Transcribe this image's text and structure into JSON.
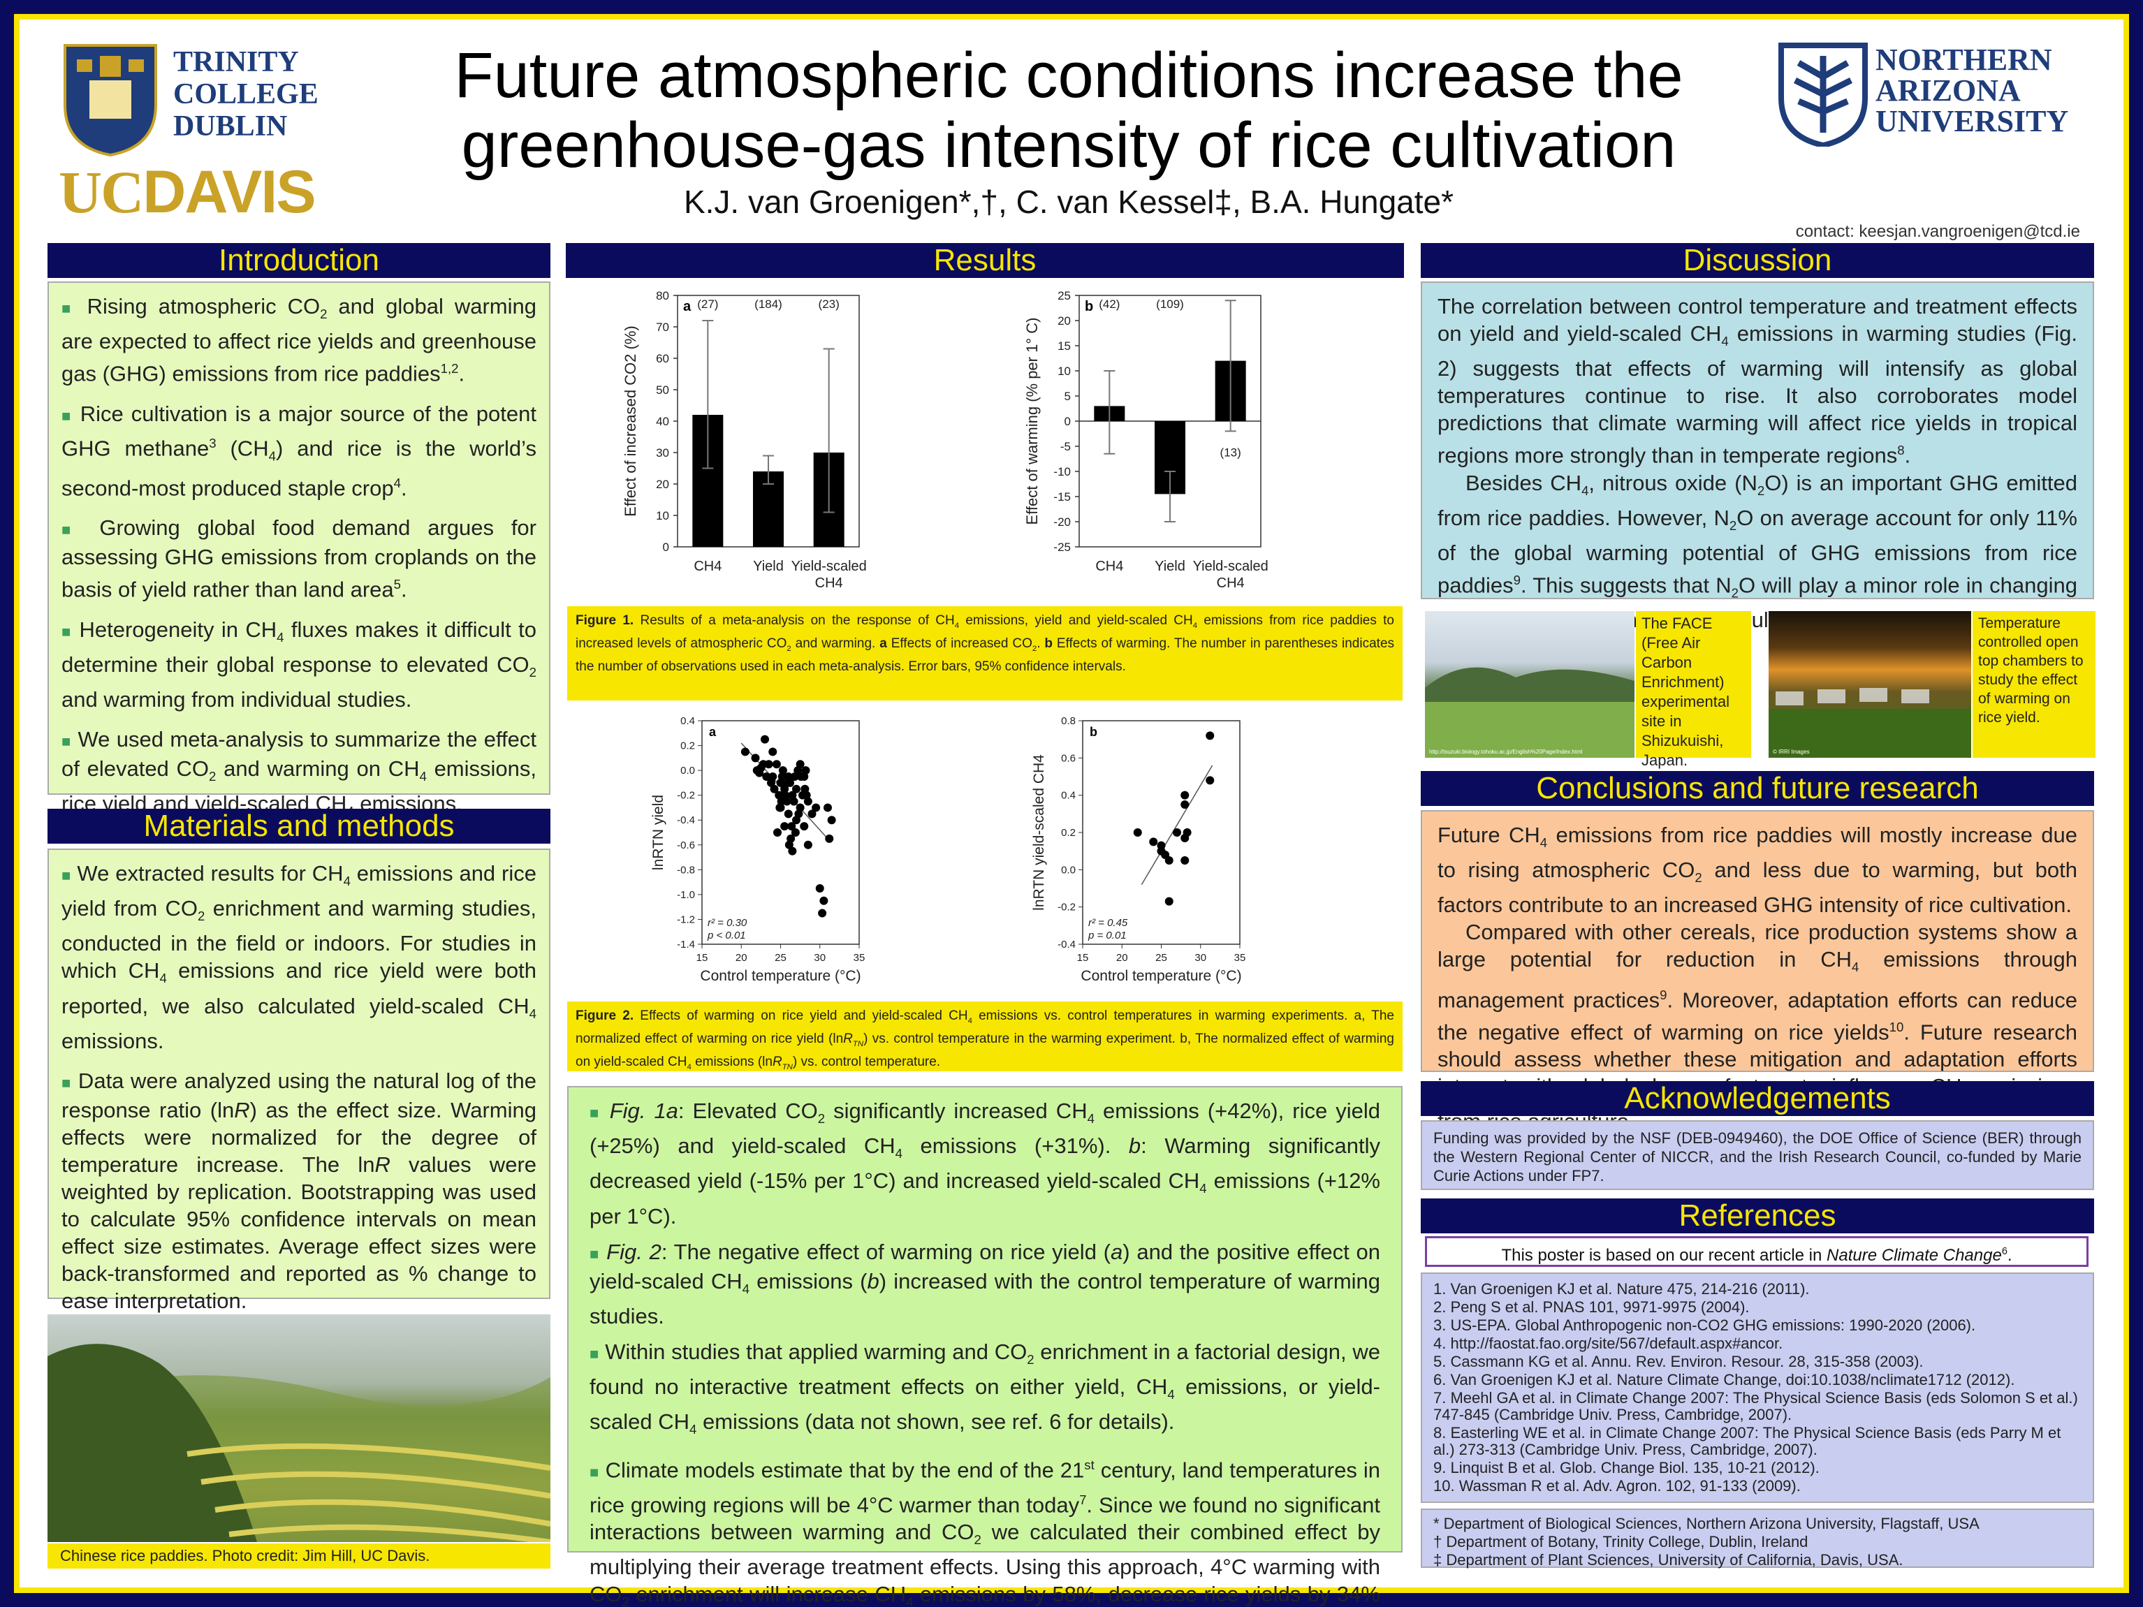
{
  "header": {
    "title_line1": "Future atmospheric conditions increase the",
    "title_line2": "greenhouse-gas intensity of rice cultivation",
    "authors": "K.J. van Groenigen*,†, C. van Kessel‡, B.A. Hungate*",
    "contact": "contact: keesjan.vangroenigen@tcd.ie",
    "logo_left_1": "TRINITY",
    "logo_left_2": "COLLEGE",
    "logo_left_3": "DUBLIN",
    "logo_ucdavis_uc": "UC",
    "logo_ucdavis_davis": "DAVIS",
    "logo_right_1": "NORTHERN",
    "logo_right_2": "ARIZONA",
    "logo_right_3": "UNIVERSITY"
  },
  "sections": {
    "introduction": "Introduction",
    "methods": "Materials and methods",
    "results": "Results",
    "discussion": "Discussion",
    "conclusions": "Conclusions and future research",
    "acknowledgements": "Acknowledgements",
    "references": "References"
  },
  "colors": {
    "navy": "#0b0b5e",
    "yellow": "#f7e600",
    "bar": "#000000"
  },
  "photo_caption_left": "Chinese rice paddies. Photo credit: Jim Hill, UC Davis.",
  "photo_caption_face": "The FACE (Free Air Carbon Enrichment) experimental site in Shizukuishi, Japan.",
  "photo_caption_chambers": "Temperature controlled open top chambers to study the effect of warming on rice yield.",
  "photo_url_face": "http://tsuzuki.biology.tohoku.ac.jp/English%20Page/Index.html",
  "photo_credit_chambers": "© IRRI Images",
  "fig1_caption": "Figure 1. Results of a meta-analysis on the response of CH4 emissions, yield and yield-scaled CH4 emissions from rice paddies to increased levels of atmospheric CO2 and warming. a Effects of increased CO2. b Effects of warming. The number in parentheses indicates the number of observations used in each meta-analysis. Error bars, 95% confidence intervals.",
  "fig2_caption": "Figure 2. Effects of warming on rice yield and yield-scaled CH4 emissions vs. control temperatures in warming experiments. a, The normalized effect of warming on rice yield (lnRTN) vs. control temperature in the warming experiment. b, The normalized effect of warming on yield-scaled CH4 emissions (lnRTN) vs. control temperature.",
  "acknowledgements": "Funding was provided by the NSF (DEB-0949460), the DOE Office of Science (BER) through the Western Regional Center of NICCR, and the Irish Research Council, co-funded by Marie Curie Actions under FP7.",
  "references_note": "This poster is based on our recent article in Nature Climate Change6.",
  "references": [
    "1. Van Groenigen KJ et al. Nature 475, 214-216 (2011).",
    "2. Peng S et al. PNAS 101, 9971-9975 (2004).",
    "3. US-EPA. Global Anthropogenic non-CO2 GHG emissions: 1990-2020 (2006).",
    "4. http://faostat.fao.org/site/567/default.aspx#ancor.",
    "5. Cassmann KG et al. Annu. Rev. Environ. Resour. 28, 315-358 (2003).",
    "6. Van Groenigen KJ et al. Nature Climate Change, doi:10.1038/nclimate1712 (2012).",
    "7. Meehl GA et al. in Climate Change 2007: The Physical Science Basis (eds Solomon S et al.) 747-845 (Cambridge Univ. Press, Cambridge, 2007).",
    "8. Easterling WE et al. in Climate Change 2007: The Physical Science Basis (eds Parry M et al.) 273-313 (Cambridge Univ. Press, Cambridge, 2007).",
    "9. Linquist B et al. Glob. Change Biol. 135, 10-21 (2012).",
    "10. Wassman R et al. Adv. Agron. 102, 91-133 (2009)."
  ],
  "affiliations": [
    "* Department of Biological Sciences, Northern Arizona University, Flagstaff, USA",
    "† Department of Botany, Trinity College, Dublin, Ireland",
    "‡ Department of Plant Sciences, University of California, Davis, USA."
  ],
  "chart_data": [
    {
      "type": "bar",
      "panel": "a",
      "categories": [
        "CH4",
        "Yield",
        "Yield-scaled CH4"
      ],
      "values": [
        42,
        24,
        30
      ],
      "ci_low": [
        25,
        20,
        11
      ],
      "ci_high": [
        72,
        29,
        63
      ],
      "n_labels": [
        "(27)",
        "(184)",
        "(23)"
      ],
      "ylabel": "Effect of increased CO2 (%)",
      "ylim": [
        0,
        80
      ],
      "yticks": [
        0,
        10,
        20,
        30,
        40,
        50,
        60,
        70,
        80
      ]
    },
    {
      "type": "bar",
      "panel": "b",
      "categories": [
        "CH4",
        "Yield",
        "Yield-scaled CH4"
      ],
      "values": [
        3,
        -14.5,
        12
      ],
      "ci_low": [
        -6.5,
        -20,
        -2
      ],
      "ci_high": [
        10,
        -10,
        24
      ],
      "n_labels": [
        "(42)",
        "(109)",
        "(13)"
      ],
      "ylabel": "Effect of warming (% per 1° C)",
      "ylim": [
        -25,
        25
      ],
      "yticks": [
        -25,
        -20,
        -15,
        -10,
        -5,
        0,
        5,
        10,
        15,
        20,
        25
      ]
    },
    {
      "type": "scatter",
      "panel": "a",
      "xlabel": "Control temperature (°C)",
      "ylabel": "lnRTN yield",
      "xlim": [
        15,
        35
      ],
      "ylim": [
        -1.4,
        0.4
      ],
      "xticks": [
        15,
        20,
        25,
        30,
        35
      ],
      "yticks": [
        -1.4,
        -1.2,
        -1.0,
        -0.8,
        -0.6,
        -0.4,
        -0.2,
        0.0,
        0.2,
        0.4
      ],
      "stats": [
        "r² = 0.30",
        "p < 0.01"
      ],
      "trend": [
        [
          20,
          0.22
        ],
        [
          31,
          -0.55
        ]
      ],
      "x": [
        20.5,
        21.8,
        22,
        22.5,
        22.3,
        23,
        23.5,
        24,
        24,
        24.2,
        24.5,
        24.8,
        25,
        25,
        25.2,
        25.3,
        25.5,
        25.5,
        25.8,
        26,
        26,
        26.2,
        26.3,
        26.5,
        26.5,
        26.8,
        27,
        27,
        27.2,
        27.5,
        27.5,
        27.8,
        28,
        28,
        28.2,
        28.5,
        28.5,
        29,
        29.5,
        30,
        30.3,
        30.5,
        31,
        31.2,
        31.5,
        23.8,
        24.6,
        25.6,
        26.1,
        26.7,
        27.3,
        28.1,
        22.8,
        25.1,
        26.4,
        25.9,
        24.9,
        27.6,
        28.3,
        23.2,
        26.9,
        25.4
      ],
      "y": [
        0.15,
        0.1,
        0.0,
        0.02,
        -0.02,
        0.25,
        0.05,
        -0.05,
        0.15,
        -0.15,
        0.05,
        -0.2,
        -0.1,
        -0.3,
        -0.05,
        0.0,
        -0.15,
        -0.45,
        -0.25,
        -0.05,
        -0.35,
        -0.1,
        -0.55,
        -0.65,
        -0.2,
        -0.05,
        -0.15,
        -0.4,
        0.0,
        -0.3,
        0.05,
        -0.2,
        -0.45,
        -0.05,
        0.0,
        -0.25,
        -0.6,
        -0.35,
        -0.3,
        -0.95,
        -1.15,
        -1.05,
        -0.3,
        -0.55,
        -0.4,
        -0.1,
        -0.5,
        -0.2,
        -0.6,
        -0.25,
        -0.35,
        -0.15,
        0.05,
        -0.25,
        -0.45,
        -0.1,
        -0.3,
        -0.05,
        -0.2,
        -0.05,
        -0.5,
        -0.2
      ],
      "panel_label": "a"
    },
    {
      "type": "scatter",
      "panel": "b",
      "xlabel": "Control temperature (°C)",
      "ylabel": "lnRTN yield-scaled CH4",
      "xlim": [
        15,
        35
      ],
      "ylim": [
        -0.4,
        0.8
      ],
      "xticks": [
        15,
        20,
        25,
        30,
        35
      ],
      "yticks": [
        -0.4,
        -0.2,
        0.0,
        0.2,
        0.4,
        0.6,
        0.8
      ],
      "stats": [
        "r² = 0.45",
        "p = 0.01"
      ],
      "trend": [
        [
          22.5,
          -0.08
        ],
        [
          31.5,
          0.56
        ]
      ],
      "x": [
        22,
        24,
        25,
        25,
        25.5,
        26,
        26,
        27,
        28,
        28,
        28,
        28,
        28.3,
        31.2,
        31.2
      ],
      "y": [
        0.2,
        0.15,
        0.13,
        0.1,
        0.08,
        0.05,
        -0.17,
        0.2,
        0.4,
        0.35,
        0.17,
        0.05,
        0.2,
        0.72,
        0.48
      ],
      "panel_label": "b"
    }
  ],
  "fig_axis": {
    "f1a_ylabel": "Effect of increased CO2 (%)",
    "f1b_ylabel": "Effect of warming  (% per 1° C)",
    "f2a_ylabel": "lnRTN yield",
    "f2b_ylabel": "lnRTN yield-scaled CH4",
    "f2_xlabel": "Control temperature (°C)",
    "cat_ch4": "CH4",
    "cat_yield": "Yield",
    "cat_ys1": "Yield-scaled",
    "cat_ys2": "CH4"
  }
}
